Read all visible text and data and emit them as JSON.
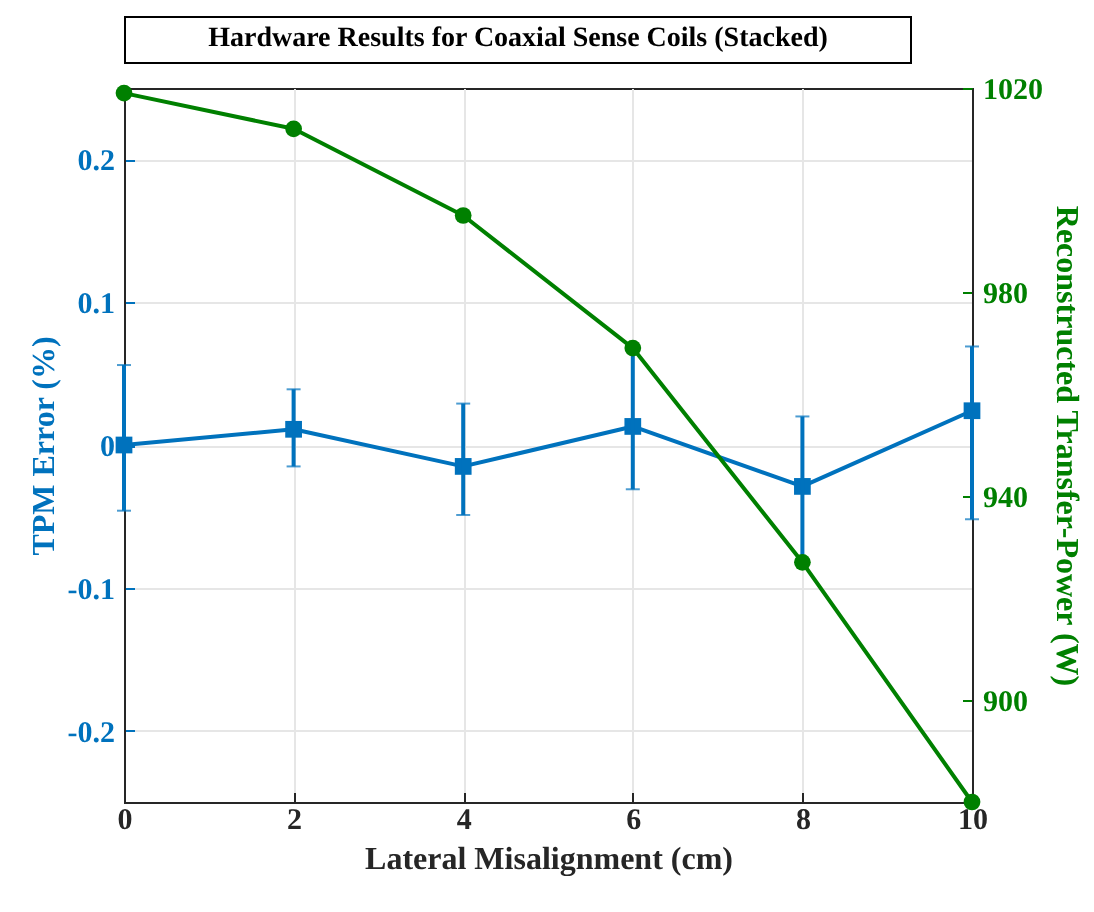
{
  "chart_data": {
    "type": "line",
    "title": "Hardware Results for Coaxial Sense Coils (Stacked)",
    "xlabel": "Lateral Misalignment (cm)",
    "ylabel": "TPM Error (%)",
    "y2label": "Reconstructed Transfer-Power (W)",
    "x": [
      0,
      2,
      4,
      6,
      8,
      10
    ],
    "xlim": [
      0,
      10
    ],
    "xticks": [
      0,
      2,
      4,
      6,
      8,
      10
    ],
    "ylim": [
      -0.25,
      0.25
    ],
    "yticks": [
      -0.2,
      -0.1,
      0,
      0.1,
      0.2
    ],
    "y2lim": [
      880,
      1020
    ],
    "y2ticks": [
      900,
      940,
      980,
      1020
    ],
    "grid": true,
    "line_style": "solid",
    "series": [
      {
        "color": "#0072bd",
        "marker": "square",
        "values": [
          0,
          0.011,
          -0.015,
          0.013,
          -0.029,
          0.024
        ],
        "errors": [
          [
            -0.046,
            0.056
          ],
          [
            -0.015,
            0.039
          ],
          [
            -0.049,
            0.029
          ],
          [
            -0.031,
            0.07
          ],
          [
            -0.08,
            0.02
          ],
          [
            -0.052,
            0.069
          ]
        ]
      },
      {
        "color": "#008000",
        "marker": "circle",
        "axis": "y2",
        "values": [
          1019,
          1012,
          995,
          969,
          927,
          880
        ]
      }
    ]
  }
}
